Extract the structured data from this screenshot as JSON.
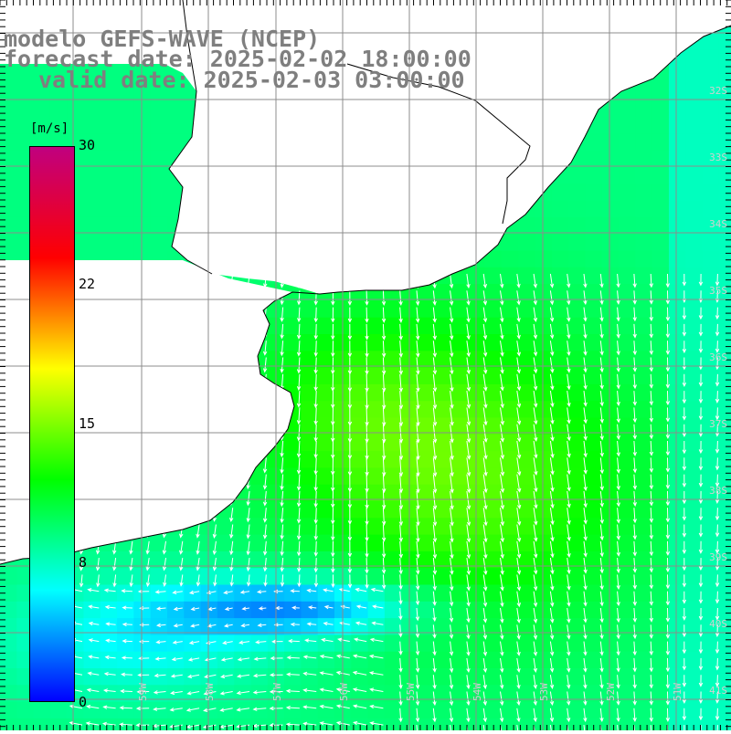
{
  "title": {
    "line1": "modelo GEFS-WAVE (NCEP)",
    "line2": "forecast date: 2025-02-02 18:00:00",
    "line3": "valid date: 2025-02-03 03:00:00"
  },
  "colorbar": {
    "unit": "[m/s]",
    "ticks": [
      "30",
      "22",
      "15",
      "8",
      "0"
    ],
    "min": 0,
    "max": 30,
    "colors": [
      "#0000ff",
      "#00ffff",
      "#00ff00",
      "#ffff00",
      "#ff0000",
      "#c0007f"
    ]
  },
  "grid_labels": {
    "latitudes": [
      "32S",
      "33S",
      "34S",
      "35S",
      "36S",
      "37S",
      "38S",
      "39S",
      "40S",
      "41S"
    ],
    "longitudes": [
      "59W",
      "58W",
      "57W",
      "56W",
      "55W",
      "54W",
      "53W",
      "52W",
      "51W"
    ]
  },
  "map_colors": {
    "land": "#ffffff",
    "coast": "#000000",
    "grid": "#8c8c8c",
    "arrows": "#ffffff"
  }
}
